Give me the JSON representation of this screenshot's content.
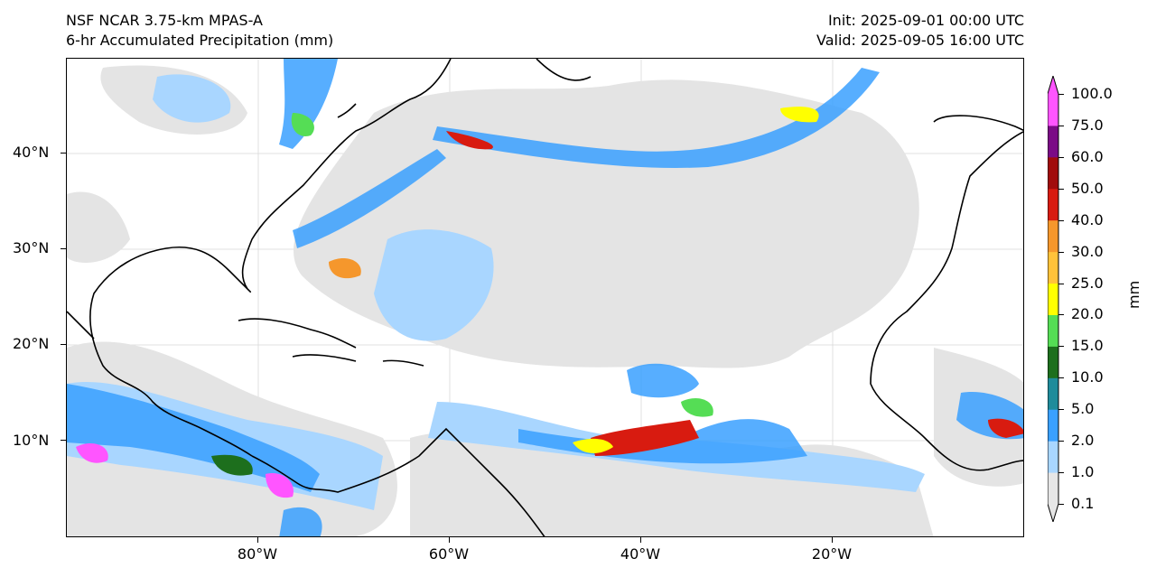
{
  "header": {
    "model": "NSF NCAR 3.75-km MPAS-A",
    "product": "6-hr Accumulated Precipitation (mm)",
    "init": "Init: 2025-09-01 00:00 UTC",
    "valid": "Valid: 2025-09-05 16:00 UTC"
  },
  "map": {
    "lat_labels": [
      "40°N",
      "30°N",
      "20°N",
      "10°N"
    ],
    "lon_labels": [
      "80°W",
      "60°W",
      "40°W",
      "20°W"
    ],
    "region": "Western Atlantic, Caribbean, Gulf of Mexico, West Africa"
  },
  "colorbar": {
    "title": "mm",
    "levels": [
      "0.1",
      "1.0",
      "2.0",
      "5.0",
      "10.0",
      "15.0",
      "20.0",
      "25.0",
      "30.0",
      "40.0",
      "50.0",
      "60.0",
      "75.0",
      "100.0"
    ],
    "colors": [
      "#e6e6e6",
      "#a9d6ff",
      "#3aa0ff",
      "#1f8c9b",
      "#1d6f1d",
      "#55dd55",
      "#ffff00",
      "#ffc23a",
      "#f5972c",
      "#d81b10",
      "#a10c0c",
      "#7b0b86",
      "#ff55ff"
    ]
  }
}
